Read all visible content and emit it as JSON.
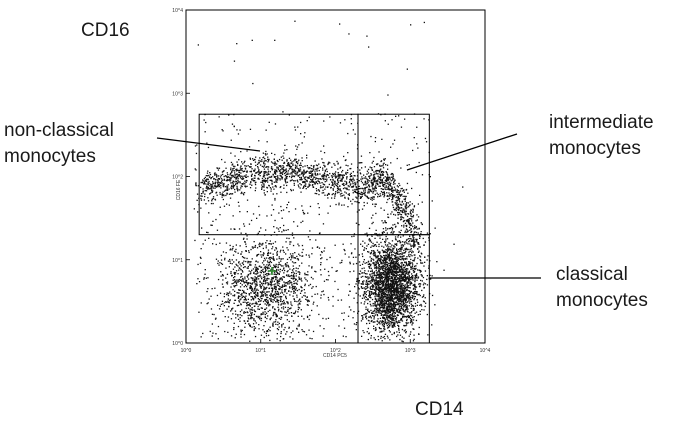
{
  "labels": {
    "cd16": "CD16",
    "cd14": "CD14",
    "non_classical": [
      "non-classical",
      "monocytes"
    ],
    "intermediate": [
      "intermediate",
      "monocytes"
    ],
    "classical": [
      "classical",
      "monocytes"
    ]
  },
  "plot": {
    "x_axis_label": "CD14 PC5",
    "y_axis_label": "CD16 FE",
    "x_ticks": [
      "10^0",
      "10^1",
      "10^2",
      "10^3",
      "10^4"
    ],
    "y_ticks": [
      "10^0",
      "10^1",
      "10^2",
      "10^3",
      "10^4"
    ],
    "x_scale": "log",
    "y_scale": "log",
    "x_range": [
      1,
      10000
    ],
    "y_range": [
      1,
      10000
    ],
    "gates": [
      {
        "name": "non-classical",
        "x": [
          1.5,
          200
        ],
        "y": [
          20,
          560
        ]
      },
      {
        "name": "intermediate",
        "x": [
          200,
          1800
        ],
        "y": [
          20,
          560
        ]
      },
      {
        "name": "classical",
        "x": [
          200,
          1800
        ],
        "y": [
          1,
          20
        ]
      }
    ],
    "point_color": "#111111",
    "highlight_color": "#2e8b2e",
    "line_color": "#000000"
  }
}
